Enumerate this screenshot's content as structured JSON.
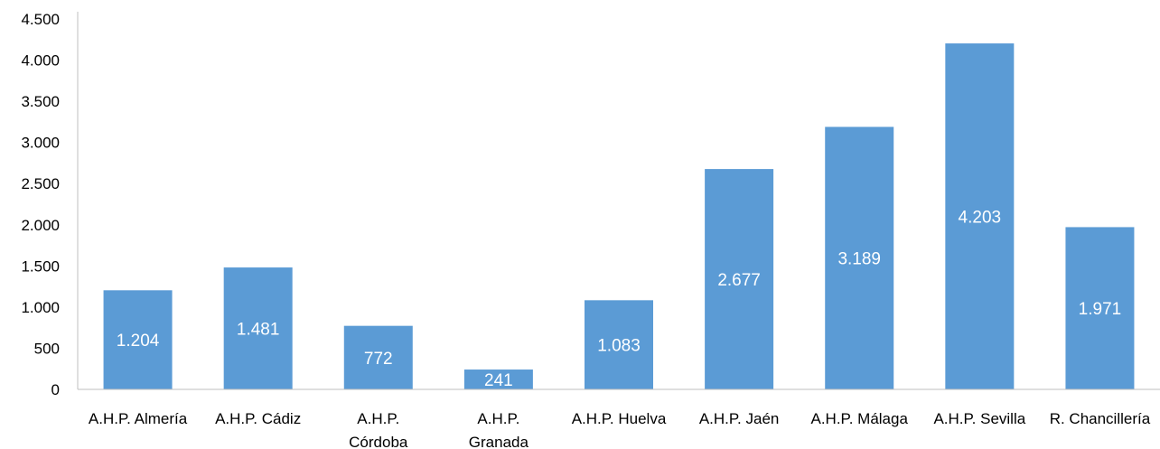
{
  "chart_data": {
    "type": "bar",
    "categories": [
      "A.H.P. Almería",
      "A.H.P. Cádiz",
      "A.H.P.\nCórdoba",
      "A.H.P.\nGranada",
      "A.H.P. Huelva",
      "A.H.P. Jaén",
      "A.H.P. Málaga",
      "A.H.P. Sevilla",
      "R. Chancillería"
    ],
    "values": [
      1204,
      1481,
      772,
      241,
      1083,
      2677,
      3189,
      4203,
      1971
    ],
    "value_labels": [
      "1.204",
      "1.481",
      "772",
      "241",
      "1.083",
      "2.677",
      "3.189",
      "4.203",
      "1.971"
    ],
    "color": "#5b9bd5",
    "ylim": [
      0,
      4500
    ],
    "yticks": [
      0,
      500,
      {
        "value": 1000,
        "label": "1.000"
      },
      {
        "value": 1500,
        "label": "1.500"
      },
      {
        "value": 2000,
        "label": "2.000"
      },
      {
        "value": 2500,
        "label": "2.500"
      },
      {
        "value": 3000,
        "label": "3.000"
      },
      {
        "value": 3500,
        "label": "3.500"
      },
      {
        "value": 4000,
        "label": "4.000"
      },
      {
        "value": 4500,
        "label": "4.500"
      }
    ],
    "grid": false
  }
}
